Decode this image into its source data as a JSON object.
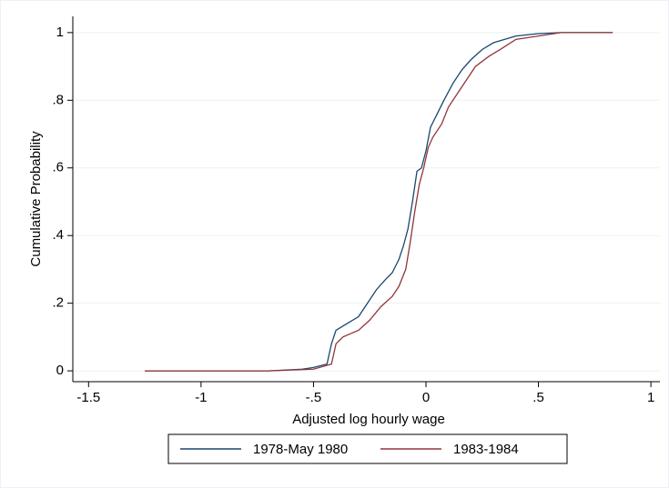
{
  "chart_data": {
    "type": "line",
    "x_label": "Adjusted log hourly wage",
    "y_label": "Cumulative Probability",
    "xlim": [
      -1.57,
      1.04
    ],
    "ylim": [
      -0.032,
      1.048
    ],
    "xticks": [
      {
        "value": -1.5,
        "label": "-1.5"
      },
      -1,
      {
        "value": -0.5,
        "label": "-.5"
      },
      0,
      {
        "value": 0.5,
        "label": ".5"
      },
      1
    ],
    "yticks": [
      0,
      {
        "value": 0.2,
        "label": ".2"
      },
      {
        "value": 0.4,
        "label": ".4"
      },
      {
        "value": 0.6,
        "label": ".6"
      },
      {
        "value": 0.8,
        "label": ".8"
      },
      1
    ],
    "grid": true,
    "legend": "bottom",
    "series": [
      {
        "name": "1978-May 1980",
        "color": "#1a476f",
        "x": [
          -1.25,
          -0.7,
          -0.55,
          -0.5,
          -0.44,
          -0.42,
          -0.4,
          -0.35,
          -0.3,
          -0.26,
          -0.22,
          -0.18,
          -0.15,
          -0.12,
          -0.1,
          -0.08,
          -0.06,
          -0.04,
          -0.02,
          0,
          0.02,
          0.05,
          0.08,
          0.12,
          0.16,
          0.2,
          0.25,
          0.3,
          0.4,
          0.5,
          0.6,
          0.83
        ],
        "values": [
          0,
          0,
          0.005,
          0.01,
          0.02,
          0.08,
          0.12,
          0.14,
          0.16,
          0.2,
          0.24,
          0.27,
          0.29,
          0.33,
          0.37,
          0.42,
          0.5,
          0.59,
          0.6,
          0.65,
          0.72,
          0.76,
          0.8,
          0.85,
          0.89,
          0.92,
          0.95,
          0.97,
          0.99,
          0.997,
          1,
          1
        ]
      },
      {
        "name": "1983-1984",
        "color": "#90353b",
        "x": [
          -1.25,
          -0.7,
          -0.5,
          -0.42,
          -0.4,
          -0.37,
          -0.3,
          -0.25,
          -0.2,
          -0.15,
          -0.12,
          -0.09,
          -0.07,
          -0.05,
          -0.03,
          -0.01,
          0.01,
          0.03,
          0.07,
          0.1,
          0.14,
          0.18,
          0.22,
          0.28,
          0.33,
          0.4,
          0.5,
          0.6,
          0.83
        ],
        "values": [
          0,
          0,
          0.005,
          0.02,
          0.08,
          0.1,
          0.12,
          0.15,
          0.19,
          0.22,
          0.25,
          0.3,
          0.38,
          0.47,
          0.55,
          0.6,
          0.66,
          0.69,
          0.73,
          0.78,
          0.82,
          0.86,
          0.9,
          0.93,
          0.95,
          0.98,
          0.99,
          1,
          1
        ]
      }
    ]
  }
}
